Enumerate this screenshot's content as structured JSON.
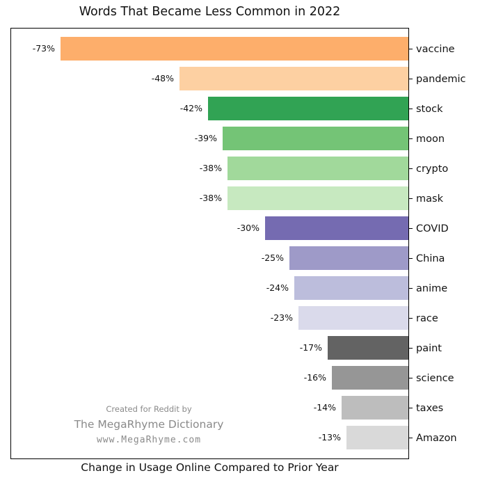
{
  "title": "Words That Became Less Common in 2022",
  "xlabel": "Change in Usage Online Compared to Prior Year",
  "watermark": {
    "line1": "Created for Reddit by",
    "line2": "The MegaRhyme Dictionary",
    "line3": "www.MegaRhyme.com"
  },
  "chart_data": {
    "type": "bar",
    "orientation": "horizontal",
    "title": "Words That Became Less Common in 2022",
    "xlabel": "Change in Usage Online Compared to Prior Year",
    "ylabel": "",
    "grid": false,
    "legend": false,
    "xlim": [
      -83.8,
      0
    ],
    "categories": [
      "vaccine",
      "pandemic",
      "stock",
      "moon",
      "crypto",
      "mask",
      "COVID",
      "China",
      "anime",
      "race",
      "paint",
      "science",
      "taxes",
      "Amazon"
    ],
    "values": [
      -73,
      -48,
      -42,
      -39,
      -38,
      -38,
      -30,
      -25,
      -24,
      -23,
      -17,
      -16,
      -14,
      -13
    ],
    "value_labels": [
      "-73%",
      "-48%",
      "-42%",
      "-39%",
      "-38%",
      "-38%",
      "-30%",
      "-25%",
      "-24%",
      "-23%",
      "-17%",
      "-16%",
      "-14%",
      "-13%"
    ],
    "bar_colors": [
      "#fdae6b",
      "#fdd0a2",
      "#31a354",
      "#74c476",
      "#a1d99b",
      "#c7e9c0",
      "#756bb1",
      "#9e9ac8",
      "#bcbddc",
      "#dadaeb",
      "#636363",
      "#969696",
      "#bdbdbd",
      "#d9d9d9"
    ],
    "category_label_side": "right",
    "value_label_position": "left-of-bar"
  }
}
